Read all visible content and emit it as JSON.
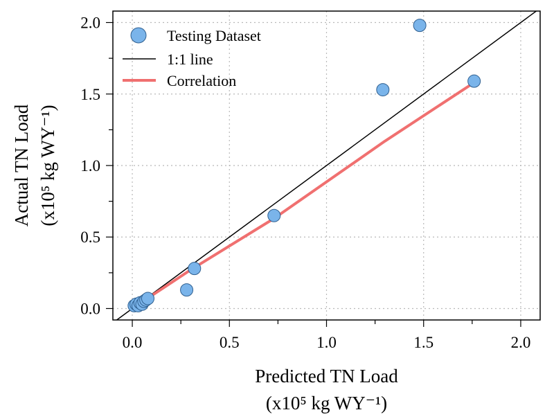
{
  "chart_data": {
    "type": "scatter",
    "xlabel": [
      "Predicted TN Load",
      "(x10⁵ kg WY⁻¹)"
    ],
    "ylabel": [
      "Actual TN Load",
      "(x10⁵ kg WY⁻¹)"
    ],
    "xlim": [
      -0.1,
      2.1
    ],
    "ylim": [
      -0.08,
      2.08
    ],
    "x_ticks": [
      0.0,
      0.5,
      1.0,
      1.5,
      2.0
    ],
    "y_ticks": [
      0.0,
      0.5,
      1.0,
      1.5,
      2.0
    ],
    "x_tick_labels": [
      "0.0",
      "0.5",
      "1.0",
      "1.5",
      "2.0"
    ],
    "y_tick_labels": [
      "0.0",
      "0.5",
      "1.0",
      "1.5",
      "2.0"
    ],
    "grid": true,
    "legend_position": "top-left",
    "series": [
      {
        "name": "Testing Dataset",
        "kind": "points",
        "color": "#7ab4ea",
        "edge_color": "#2f5f8f",
        "points": [
          {
            "x": 0.01,
            "y": 0.02
          },
          {
            "x": 0.02,
            "y": 0.03
          },
          {
            "x": 0.03,
            "y": 0.02
          },
          {
            "x": 0.04,
            "y": 0.04
          },
          {
            "x": 0.05,
            "y": 0.03
          },
          {
            "x": 0.06,
            "y": 0.05
          },
          {
            "x": 0.07,
            "y": 0.06
          },
          {
            "x": 0.08,
            "y": 0.07
          },
          {
            "x": 0.28,
            "y": 0.13
          },
          {
            "x": 0.32,
            "y": 0.28
          },
          {
            "x": 0.73,
            "y": 0.65
          },
          {
            "x": 1.29,
            "y": 1.53
          },
          {
            "x": 1.48,
            "y": 1.98
          },
          {
            "x": 1.76,
            "y": 1.59
          }
        ]
      },
      {
        "name": "1:1 line",
        "kind": "line",
        "color": "#000000",
        "points": [
          {
            "x": -0.1,
            "y": -0.1
          },
          {
            "x": 2.1,
            "y": 2.1
          }
        ]
      },
      {
        "name": "Correlation",
        "kind": "line",
        "color": "#f07070",
        "points": [
          {
            "x": 0.01,
            "y": 0.01
          },
          {
            "x": 0.3,
            "y": 0.27
          },
          {
            "x": 0.73,
            "y": 0.63
          },
          {
            "x": 1.3,
            "y": 1.17
          },
          {
            "x": 1.76,
            "y": 1.58
          }
        ]
      }
    ]
  }
}
